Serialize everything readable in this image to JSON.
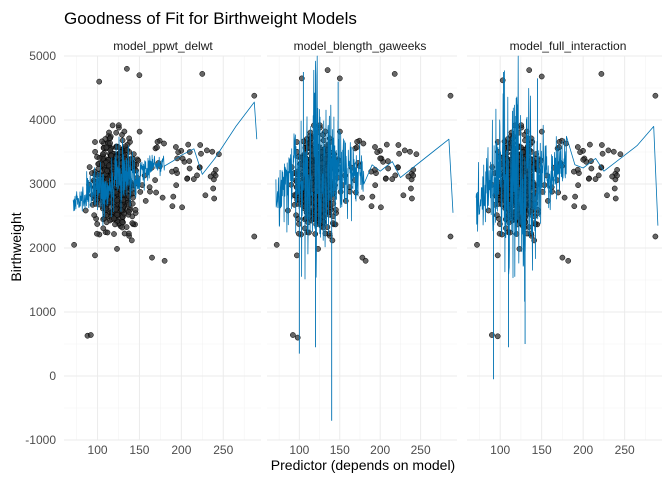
{
  "chart_data": {
    "type": "scatter",
    "title": "Goodness of Fit for Birthweight Models",
    "xlabel": "Predictor (depends on model)",
    "ylabel": "Birthweight",
    "xlim": [
      60,
      295
    ],
    "ylim": [
      -1000,
      5000
    ],
    "x_ticks": [
      100,
      150,
      200,
      250
    ],
    "y_ticks": [
      -1000,
      0,
      1000,
      2000,
      3000,
      4000,
      5000
    ],
    "x_tick_labels": [
      "100",
      "150",
      "200",
      "250"
    ],
    "y_tick_labels": [
      "-1000",
      "0",
      "1000",
      "2000",
      "3000",
      "4000",
      "5000"
    ],
    "grid": true,
    "point_color": "#333333",
    "line_color": "#0072b2",
    "panels": [
      {
        "name": "model_ppwt_delwt",
        "fit_spread": 320,
        "fit_points": [
          {
            "x": 71,
            "y": 2700
          },
          {
            "x": 85,
            "y": 2800
          },
          {
            "x": 100,
            "y": 2900
          },
          {
            "x": 115,
            "y": 3000
          },
          {
            "x": 130,
            "y": 3080
          },
          {
            "x": 145,
            "y": 3150
          },
          {
            "x": 160,
            "y": 3230
          },
          {
            "x": 175,
            "y": 3320
          },
          {
            "x": 190,
            "y": 3360
          },
          {
            "x": 200,
            "y": 3450
          },
          {
            "x": 215,
            "y": 3550
          },
          {
            "x": 225,
            "y": 3150
          },
          {
            "x": 240,
            "y": 3400
          },
          {
            "x": 265,
            "y": 3900
          },
          {
            "x": 287,
            "y": 4280
          },
          {
            "x": 290,
            "y": 3700
          }
        ],
        "outliers": [
          {
            "x": 72,
            "y": 2050
          },
          {
            "x": 88,
            "y": 630
          },
          {
            "x": 92,
            "y": 640
          },
          {
            "x": 102,
            "y": 4600
          },
          {
            "x": 135,
            "y": 4800
          },
          {
            "x": 150,
            "y": 4700
          },
          {
            "x": 165,
            "y": 1850
          },
          {
            "x": 180,
            "y": 1800
          },
          {
            "x": 195,
            "y": 3400
          },
          {
            "x": 210,
            "y": 3500
          },
          {
            "x": 225,
            "y": 4720
          },
          {
            "x": 287,
            "y": 4380
          },
          {
            "x": 287,
            "y": 2180
          }
        ]
      },
      {
        "name": "model_blength_gaweeks",
        "fit_spread": 900,
        "fit_points": [
          {
            "x": 71,
            "y": 2800
          },
          {
            "x": 85,
            "y": 3000
          },
          {
            "x": 100,
            "y": 3050
          },
          {
            "x": 115,
            "y": 3150
          },
          {
            "x": 130,
            "y": 3100
          },
          {
            "x": 145,
            "y": 3200
          },
          {
            "x": 160,
            "y": 3150
          },
          {
            "x": 175,
            "y": 3250
          },
          {
            "x": 190,
            "y": 3300
          },
          {
            "x": 200,
            "y": 3200
          },
          {
            "x": 215,
            "y": 3350
          },
          {
            "x": 225,
            "y": 3100
          },
          {
            "x": 240,
            "y": 3250
          },
          {
            "x": 265,
            "y": 3500
          },
          {
            "x": 285,
            "y": 3700
          },
          {
            "x": 290,
            "y": 2550
          }
        ],
        "spikes": [
          {
            "x": 100,
            "y": 350
          },
          {
            "x": 120,
            "y": 450
          },
          {
            "x": 140,
            "y": -700
          },
          {
            "x": 105,
            "y": 4750
          },
          {
            "x": 148,
            "y": 4600
          }
        ],
        "outliers": [
          {
            "x": 72,
            "y": 2050
          },
          {
            "x": 92,
            "y": 640
          },
          {
            "x": 98,
            "y": 600
          },
          {
            "x": 103,
            "y": 4650
          },
          {
            "x": 135,
            "y": 4780
          },
          {
            "x": 150,
            "y": 4650
          },
          {
            "x": 178,
            "y": 1850
          },
          {
            "x": 182,
            "y": 1800
          },
          {
            "x": 200,
            "y": 3400
          },
          {
            "x": 218,
            "y": 4720
          },
          {
            "x": 287,
            "y": 4380
          },
          {
            "x": 287,
            "y": 2180
          }
        ]
      },
      {
        "name": "model_full_interaction",
        "fit_spread": 900,
        "fit_points": [
          {
            "x": 71,
            "y": 2700
          },
          {
            "x": 85,
            "y": 2950
          },
          {
            "x": 100,
            "y": 3050
          },
          {
            "x": 115,
            "y": 3100
          },
          {
            "x": 130,
            "y": 3150
          },
          {
            "x": 145,
            "y": 3150
          },
          {
            "x": 160,
            "y": 3200
          },
          {
            "x": 175,
            "y": 3250
          },
          {
            "x": 190,
            "y": 3300
          },
          {
            "x": 200,
            "y": 3250
          },
          {
            "x": 215,
            "y": 3400
          },
          {
            "x": 225,
            "y": 3200
          },
          {
            "x": 240,
            "y": 3350
          },
          {
            "x": 265,
            "y": 3600
          },
          {
            "x": 285,
            "y": 3900
          },
          {
            "x": 290,
            "y": 2350
          }
        ],
        "spikes": [
          {
            "x": 92,
            "y": -50
          },
          {
            "x": 110,
            "y": 450
          },
          {
            "x": 130,
            "y": 500
          },
          {
            "x": 104,
            "y": 4750
          },
          {
            "x": 145,
            "y": 4650
          }
        ],
        "outliers": [
          {
            "x": 72,
            "y": 2050
          },
          {
            "x": 90,
            "y": 640
          },
          {
            "x": 97,
            "y": 620
          },
          {
            "x": 103,
            "y": 4620
          },
          {
            "x": 135,
            "y": 4780
          },
          {
            "x": 150,
            "y": 4680
          },
          {
            "x": 175,
            "y": 1850
          },
          {
            "x": 182,
            "y": 1800
          },
          {
            "x": 200,
            "y": 3380
          },
          {
            "x": 222,
            "y": 4720
          },
          {
            "x": 287,
            "y": 4380
          },
          {
            "x": 287,
            "y": 2180
          }
        ]
      }
    ],
    "point_cloud": {
      "center_x": 122,
      "center_y": 3000,
      "sd_x": 19,
      "sd_y": 520,
      "tail_x": [
        150,
        245
      ],
      "tail_y": [
        2600,
        3700
      ],
      "count": 650,
      "tail_count": 50
    }
  }
}
